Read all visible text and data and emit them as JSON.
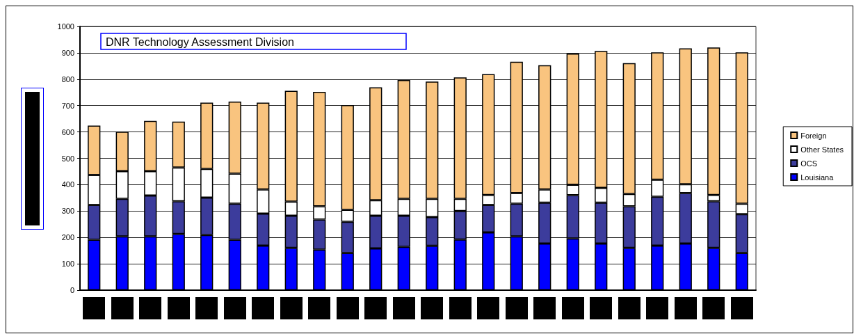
{
  "chart_data": {
    "type": "bar",
    "title": "DNR Technology Assessment Division",
    "categories": [
      null,
      null,
      null,
      null,
      null,
      null,
      null,
      null,
      null,
      null,
      null,
      null,
      null,
      null,
      null,
      null,
      null,
      null,
      null,
      null,
      null,
      null,
      null,
      null
    ],
    "stacked": true,
    "series": [
      {
        "name": "Louisiana",
        "color": "#0000ff",
        "values": [
          191,
          204,
          204,
          213,
          209,
          191,
          169,
          160,
          154,
          141,
          158,
          164,
          168,
          192,
          219,
          204,
          177,
          196,
          177,
          160,
          169,
          177,
          160,
          141
        ]
      },
      {
        "name": "OCS",
        "color": "#3c3c9c",
        "values": [
          132,
          142,
          155,
          124,
          142,
          137,
          121,
          122,
          114,
          118,
          124,
          118,
          109,
          108,
          104,
          124,
          155,
          164,
          155,
          158,
          185,
          191,
          177,
          147
        ]
      },
      {
        "name": "Other States",
        "color": "#ffffff",
        "values": [
          114,
          105,
          92,
          128,
          109,
          114,
          92,
          54,
          50,
          46,
          59,
          64,
          69,
          46,
          38,
          40,
          50,
          40,
          56,
          47,
          65,
          34,
          24,
          40
        ]
      },
      {
        "name": "Foreign",
        "color": "#f9c47f",
        "values": [
          187,
          150,
          191,
          174,
          251,
          273,
          329,
          420,
          434,
          397,
          428,
          451,
          445,
          461,
          458,
          498,
          471,
          497,
          519,
          496,
          483,
          515,
          559,
          574
        ]
      }
    ],
    "ylim": [
      0,
      1000
    ],
    "yticks": [
      0,
      100,
      200,
      300,
      400,
      500,
      600,
      700,
      800,
      900,
      1000
    ],
    "grid": "y",
    "legend": "right"
  }
}
